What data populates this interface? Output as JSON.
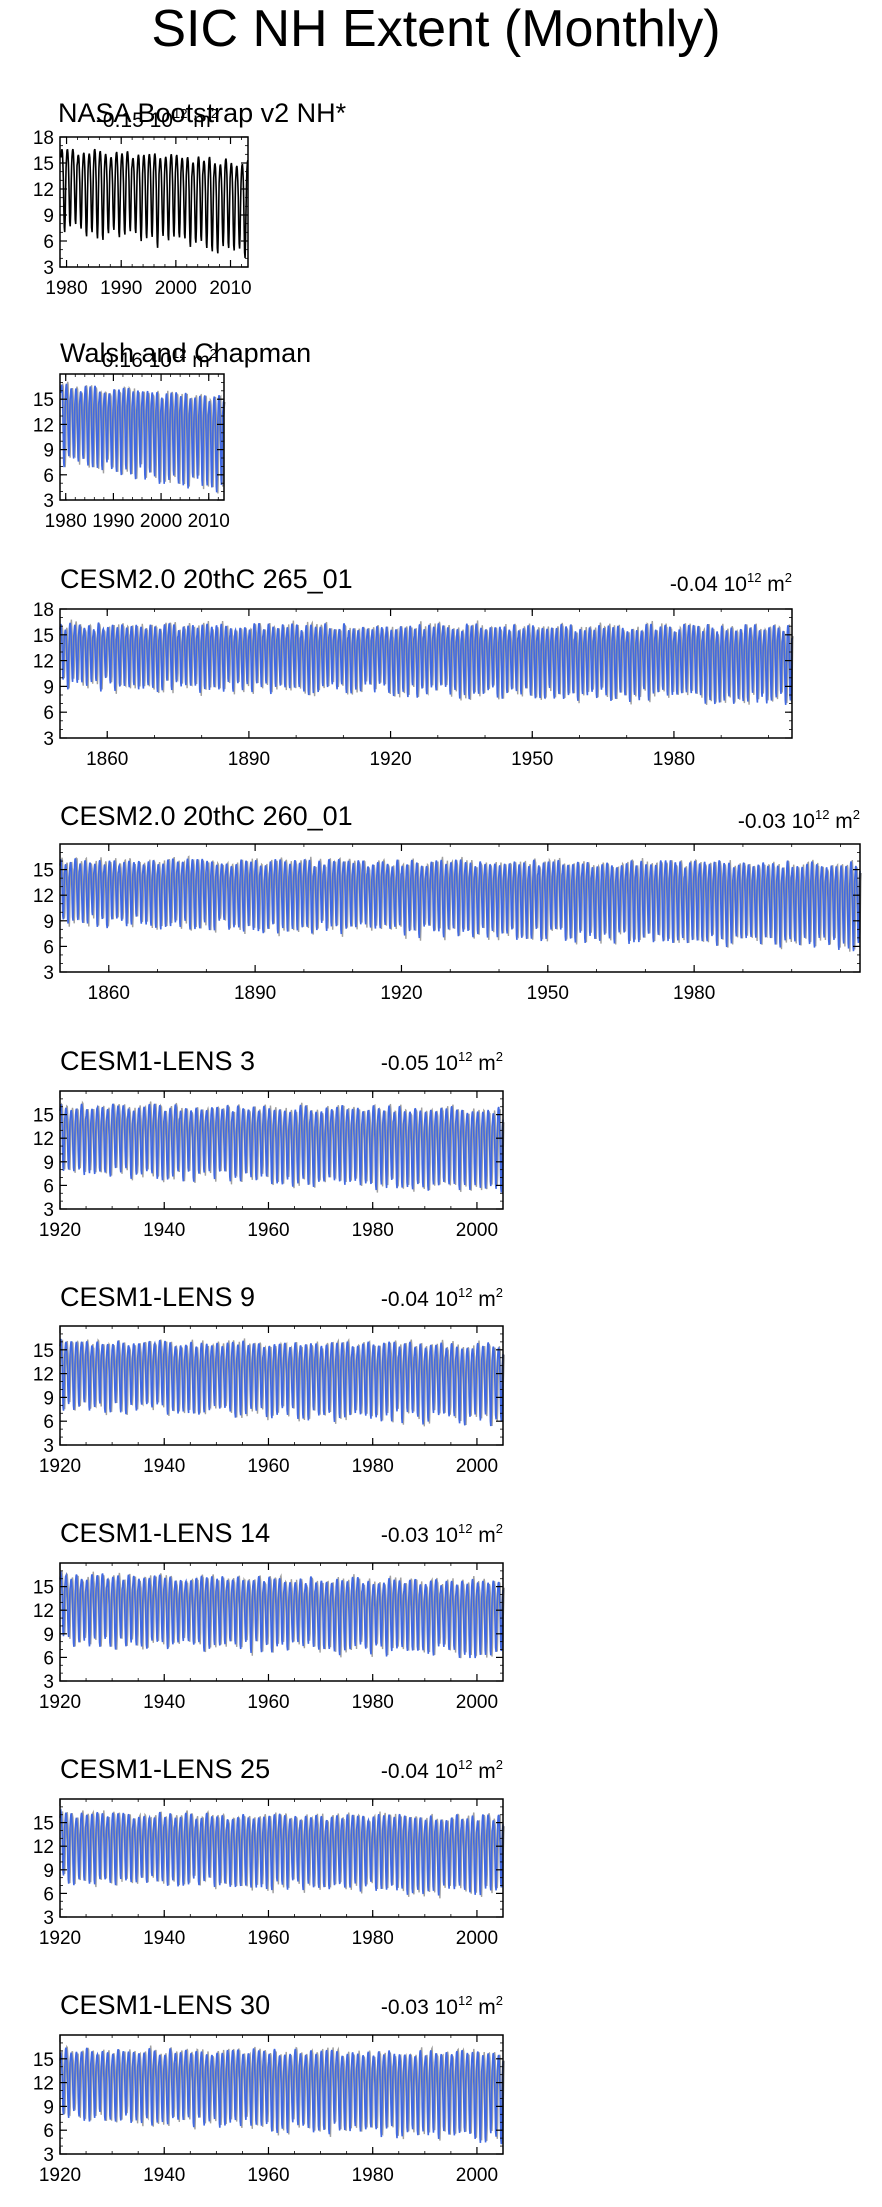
{
  "title": "SIC NH Extent (Monthly)",
  "colors": {
    "obs": "#000000",
    "model": "#4169e1",
    "shadow": "#a0a0a0",
    "axes": "#000000"
  },
  "chart_data": [
    {
      "type": "line",
      "title": "NASA Bootstrap v2 NH*",
      "trend": "-0.15 10",
      "trend_exp": "12",
      "trend_unit": "m",
      "trend_unit_exp": "2",
      "xlim": [
        1978.8,
        2013.2
      ],
      "ylim": [
        3,
        18
      ],
      "xticks": [
        "1980",
        "1990",
        "2000",
        "2010"
      ],
      "xtick_values": [
        1980,
        1990,
        2000,
        2010
      ],
      "yticks": [
        "3",
        "6",
        "9",
        "12",
        "15",
        "18"
      ],
      "ytick_values": [
        3,
        6,
        9,
        12,
        15,
        18
      ],
      "series": [
        {
          "color": "#000000",
          "start_year": 1979,
          "end_year": 2013,
          "max_start": 16.4,
          "max_end": 15.0,
          "min_start": 7.5,
          "min_end": 4.5
        }
      ]
    },
    {
      "type": "line",
      "title": "Walsh and Chapman",
      "trend": "-0.16 10",
      "trend_exp": "12",
      "trend_unit": "m",
      "trend_unit_exp": "2",
      "xlim": [
        1978.8,
        2013.2
      ],
      "ylim": [
        3,
        18
      ],
      "xticks": [
        "1980",
        "1990",
        "2000",
        "2010"
      ],
      "xtick_values": [
        1980,
        1990,
        2000,
        2010
      ],
      "yticks": [
        "3",
        "6",
        "9",
        "12",
        "15"
      ],
      "ytick_values": [
        3,
        6,
        9,
        12,
        15
      ],
      "series": [
        {
          "color": "#4169e1",
          "start_year": 1979,
          "end_year": 2013,
          "max_start": 16.5,
          "max_end": 15.0,
          "min_start": 7.7,
          "min_end": 4.3
        }
      ]
    },
    {
      "type": "line",
      "title": "CESM2.0 20thC 265_01",
      "trend": "-0.04 10",
      "trend_exp": "12",
      "trend_unit": "m",
      "trend_unit_exp": "2",
      "xlim": [
        1850,
        2005
      ],
      "ylim": [
        3,
        18
      ],
      "xticks": [
        "1860",
        "1890",
        "1920",
        "1950",
        "1980"
      ],
      "xtick_values": [
        1860,
        1890,
        1920,
        1950,
        1980
      ],
      "yticks": [
        "3",
        "6",
        "9",
        "12",
        "15",
        "18"
      ],
      "ytick_values": [
        3,
        6,
        9,
        12,
        15,
        18
      ],
      "series": [
        {
          "color": "#4169e1",
          "start_year": 1850,
          "end_year": 2005,
          "max_start": 16.0,
          "max_end": 15.8,
          "min_start": 9.3,
          "min_end": 7.5
        }
      ]
    },
    {
      "type": "line",
      "title": "CESM2.0 20thC 260_01",
      "trend": "-0.03 10",
      "trend_exp": "12",
      "trend_unit": "m",
      "trend_unit_exp": "2",
      "xlim": [
        1850,
        2014
      ],
      "ylim": [
        3,
        18
      ],
      "xticks": [
        "1860",
        "1890",
        "1920",
        "1950",
        "1980"
      ],
      "xtick_values": [
        1860,
        1890,
        1920,
        1950,
        1980
      ],
      "yticks": [
        "3",
        "6",
        "9",
        "12",
        "15"
      ],
      "ytick_values": [
        3,
        6,
        9,
        12,
        15
      ],
      "series": [
        {
          "color": "#4169e1",
          "start_year": 1850,
          "end_year": 2014,
          "max_start": 15.9,
          "max_end": 15.6,
          "min_start": 9.0,
          "min_end": 6.2
        }
      ]
    },
    {
      "type": "line",
      "title": "CESM1-LENS 3",
      "trend": "-0.05 10",
      "trend_exp": "12",
      "trend_unit": "m",
      "trend_unit_exp": "2",
      "xlim": [
        1920,
        2005
      ],
      "ylim": [
        3,
        18
      ],
      "xticks": [
        "1920",
        "1940",
        "1960",
        "1980",
        "2000"
      ],
      "xtick_values": [
        1920,
        1940,
        1960,
        1980,
        2000
      ],
      "yticks": [
        "3",
        "6",
        "9",
        "12",
        "15"
      ],
      "ytick_values": [
        3,
        6,
        9,
        12,
        15
      ],
      "series": [
        {
          "color": "#4169e1",
          "start_year": 1920,
          "end_year": 2005,
          "max_start": 16.0,
          "max_end": 15.6,
          "min_start": 8.0,
          "min_end": 5.3
        }
      ]
    },
    {
      "type": "line",
      "title": "CESM1-LENS 9",
      "trend": "-0.04 10",
      "trend_exp": "12",
      "trend_unit": "m",
      "trend_unit_exp": "2",
      "xlim": [
        1920,
        2005
      ],
      "ylim": [
        3,
        18
      ],
      "xticks": [
        "1920",
        "1940",
        "1960",
        "1980",
        "2000"
      ],
      "xtick_values": [
        1920,
        1940,
        1960,
        1980,
        2000
      ],
      "yticks": [
        "3",
        "6",
        "9",
        "12",
        "15"
      ],
      "ytick_values": [
        3,
        6,
        9,
        12,
        15
      ],
      "series": [
        {
          "color": "#4169e1",
          "start_year": 1920,
          "end_year": 2005,
          "max_start": 16.0,
          "max_end": 15.5,
          "min_start": 7.8,
          "min_end": 6.0
        }
      ]
    },
    {
      "type": "line",
      "title": "CESM1-LENS 14",
      "trend": "-0.03 10",
      "trend_exp": "12",
      "trend_unit": "m",
      "trend_unit_exp": "2",
      "xlim": [
        1920,
        2005
      ],
      "ylim": [
        3,
        18
      ],
      "xticks": [
        "1920",
        "1940",
        "1960",
        "1980",
        "2000"
      ],
      "xtick_values": [
        1920,
        1940,
        1960,
        1980,
        2000
      ],
      "yticks": [
        "3",
        "6",
        "9",
        "12",
        "15"
      ],
      "ytick_values": [
        3,
        6,
        9,
        12,
        15
      ],
      "series": [
        {
          "color": "#4169e1",
          "start_year": 1920,
          "end_year": 2005,
          "max_start": 16.3,
          "max_end": 15.5,
          "min_start": 7.9,
          "min_end": 6.5
        }
      ]
    },
    {
      "type": "line",
      "title": "CESM1-LENS 25",
      "trend": "-0.04 10",
      "trend_exp": "12",
      "trend_unit": "m",
      "trend_unit_exp": "2",
      "xlim": [
        1920,
        2005
      ],
      "ylim": [
        3,
        18
      ],
      "xticks": [
        "1920",
        "1940",
        "1960",
        "1980",
        "2000"
      ],
      "xtick_values": [
        1920,
        1940,
        1960,
        1980,
        2000
      ],
      "yticks": [
        "3",
        "6",
        "9",
        "12",
        "15"
      ],
      "ytick_values": [
        3,
        6,
        9,
        12,
        15
      ],
      "series": [
        {
          "color": "#4169e1",
          "start_year": 1920,
          "end_year": 2005,
          "max_start": 16.0,
          "max_end": 15.6,
          "min_start": 7.8,
          "min_end": 6.2
        }
      ]
    },
    {
      "type": "line",
      "title": "CESM1-LENS 30",
      "trend": "-0.03 10",
      "trend_exp": "12",
      "trend_unit": "m",
      "trend_unit_exp": "2",
      "xlim": [
        1920,
        2005
      ],
      "ylim": [
        3,
        18
      ],
      "xticks": [
        "1920",
        "1940",
        "1960",
        "1980",
        "2000"
      ],
      "xtick_values": [
        1920,
        1940,
        1960,
        1980,
        2000
      ],
      "yticks": [
        "3",
        "6",
        "9",
        "12",
        "15"
      ],
      "ytick_values": [
        3,
        6,
        9,
        12,
        15
      ],
      "series": [
        {
          "color": "#4169e1",
          "start_year": 1920,
          "end_year": 2005,
          "max_start": 16.0,
          "max_end": 15.7,
          "min_start": 7.8,
          "min_end": 5.0
        }
      ]
    }
  ]
}
